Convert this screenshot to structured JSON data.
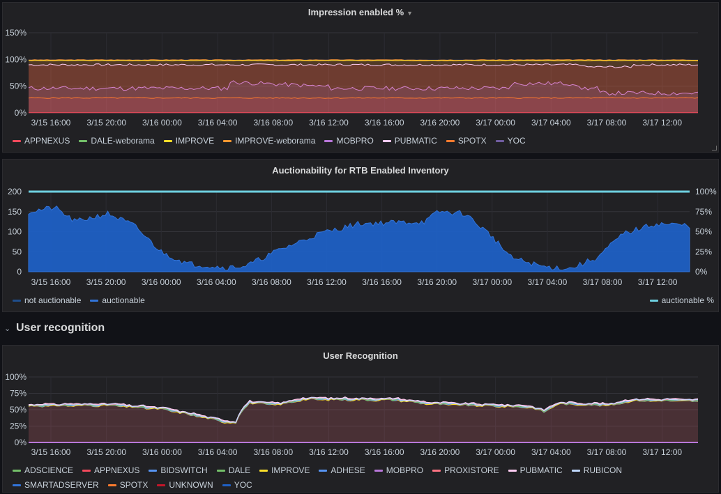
{
  "panels": {
    "impression": {
      "title": "Impression enabled %",
      "y_ticks": [
        "150%",
        "100%",
        "50%",
        "0%"
      ],
      "x_ticks": [
        "3/15 16:00",
        "3/15 20:00",
        "3/16 00:00",
        "3/16 04:00",
        "3/16 08:00",
        "3/16 12:00",
        "3/16 16:00",
        "3/16 20:00",
        "3/17 00:00",
        "3/17 04:00",
        "3/17 08:00",
        "3/17 12:00"
      ],
      "legend": [
        {
          "name": "APPNEXUS",
          "color": "#f2495c"
        },
        {
          "name": "DALE-weborama",
          "color": "#73bf69"
        },
        {
          "name": "IMPROVE",
          "color": "#fade2a"
        },
        {
          "name": "IMPROVE-weborama",
          "color": "#ff9830"
        },
        {
          "name": "MOBPRO",
          "color": "#b877d9"
        },
        {
          "name": "PUBMATIC",
          "color": "#ffcdf3"
        },
        {
          "name": "SPOTX",
          "color": "#ff7b2e"
        },
        {
          "name": "YOC",
          "color": "#705da0"
        }
      ]
    },
    "auction": {
      "title": "Auctionability for RTB Enabled Inventory",
      "y_left_ticks": [
        "200",
        "150",
        "100",
        "50",
        "0"
      ],
      "y_right_ticks": [
        "100%",
        "75%",
        "50%",
        "25%",
        "0%"
      ],
      "x_ticks": [
        "3/15 16:00",
        "3/15 20:00",
        "3/16 00:00",
        "3/16 04:00",
        "3/16 08:00",
        "3/16 12:00",
        "3/16 16:00",
        "3/16 20:00",
        "3/17 00:00",
        "3/17 04:00",
        "3/17 08:00",
        "3/17 12:00"
      ],
      "legend_left": [
        {
          "name": "not auctionable",
          "color": "#1f4e8c"
        },
        {
          "name": "auctionable",
          "color": "#3274d9"
        }
      ],
      "legend_right": [
        {
          "name": "auctionable %",
          "color": "#6ed0e0"
        }
      ]
    },
    "row": {
      "title": "User recognition"
    },
    "recognition": {
      "title": "User Recognition",
      "y_ticks": [
        "100%",
        "75%",
        "50%",
        "25%",
        "0%"
      ],
      "x_ticks": [
        "3/15 16:00",
        "3/15 20:00",
        "3/16 00:00",
        "3/16 04:00",
        "3/16 08:00",
        "3/16 12:00",
        "3/16 16:00",
        "3/16 20:00",
        "3/17 00:00",
        "3/17 04:00",
        "3/17 08:00",
        "3/17 12:00"
      ],
      "legend": [
        {
          "name": "ADSCIENCE",
          "color": "#73bf69"
        },
        {
          "name": "APPNEXUS",
          "color": "#f2495c"
        },
        {
          "name": "BIDSWITCH",
          "color": "#5794f2"
        },
        {
          "name": "DALE",
          "color": "#73bf69"
        },
        {
          "name": "IMPROVE",
          "color": "#fade2a"
        },
        {
          "name": "ADHESE",
          "color": "#5794f2"
        },
        {
          "name": "MOBPRO",
          "color": "#b877d9"
        },
        {
          "name": "PROXISTORE",
          "color": "#ff7383"
        },
        {
          "name": "PUBMATIC",
          "color": "#ffcdf3"
        },
        {
          "name": "RUBICON",
          "color": "#c0d8ff"
        },
        {
          "name": "SMARTADSERVER",
          "color": "#3274d9"
        },
        {
          "name": "SPOTX",
          "color": "#ff7b2e"
        },
        {
          "name": "UNKNOWN",
          "color": "#c4162a"
        },
        {
          "name": "YOC",
          "color": "#1f60c4"
        }
      ]
    }
  }
}
